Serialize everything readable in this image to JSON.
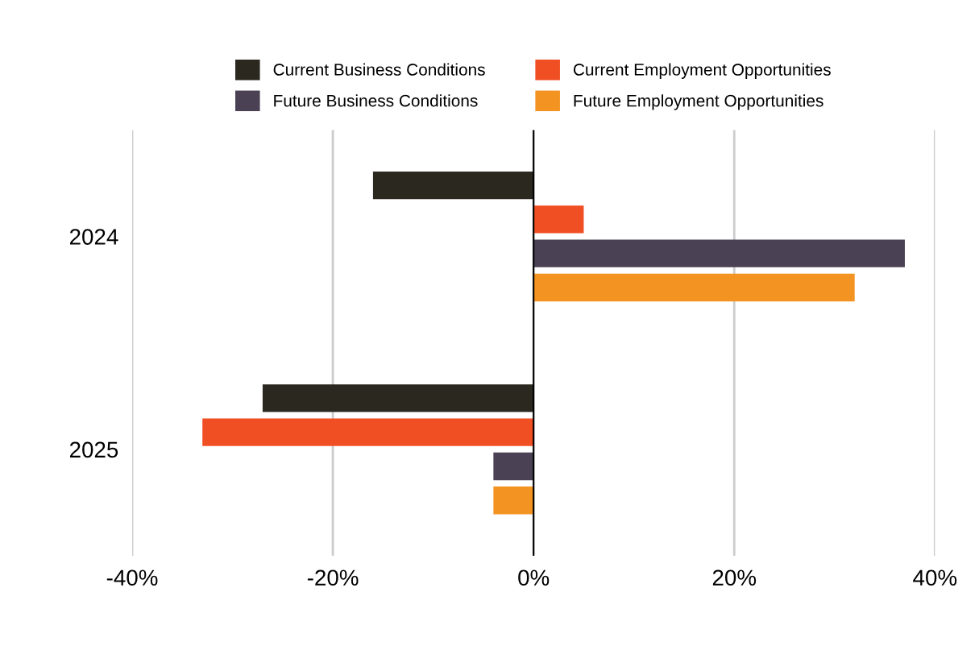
{
  "chart_data": {
    "type": "bar",
    "orientation": "horizontal",
    "categories": [
      "2024",
      "2025"
    ],
    "series": [
      {
        "name": "Current Business Conditions",
        "color": "#2b2820",
        "values": [
          -16,
          -27
        ]
      },
      {
        "name": "Current Employment Opportunities",
        "color": "#f04e23",
        "values": [
          5,
          -33
        ]
      },
      {
        "name": "Future Business Conditions",
        "color": "#4a4154",
        "values": [
          37,
          -4
        ]
      },
      {
        "name": "Future Employment Opportunities",
        "color": "#f39422",
        "values": [
          32,
          -4
        ]
      }
    ],
    "xlim": [
      -40,
      40
    ],
    "xticks": [
      {
        "value": -40,
        "label": "-40%"
      },
      {
        "value": -20,
        "label": "-20%"
      },
      {
        "value": 0,
        "label": "0%"
      },
      {
        "value": 20,
        "label": "20%"
      },
      {
        "value": 40,
        "label": "40%"
      }
    ],
    "ref_lines": [
      {
        "axis": "x",
        "value": 0,
        "color": "#000000"
      }
    ],
    "grid": "x",
    "legend": "top"
  }
}
